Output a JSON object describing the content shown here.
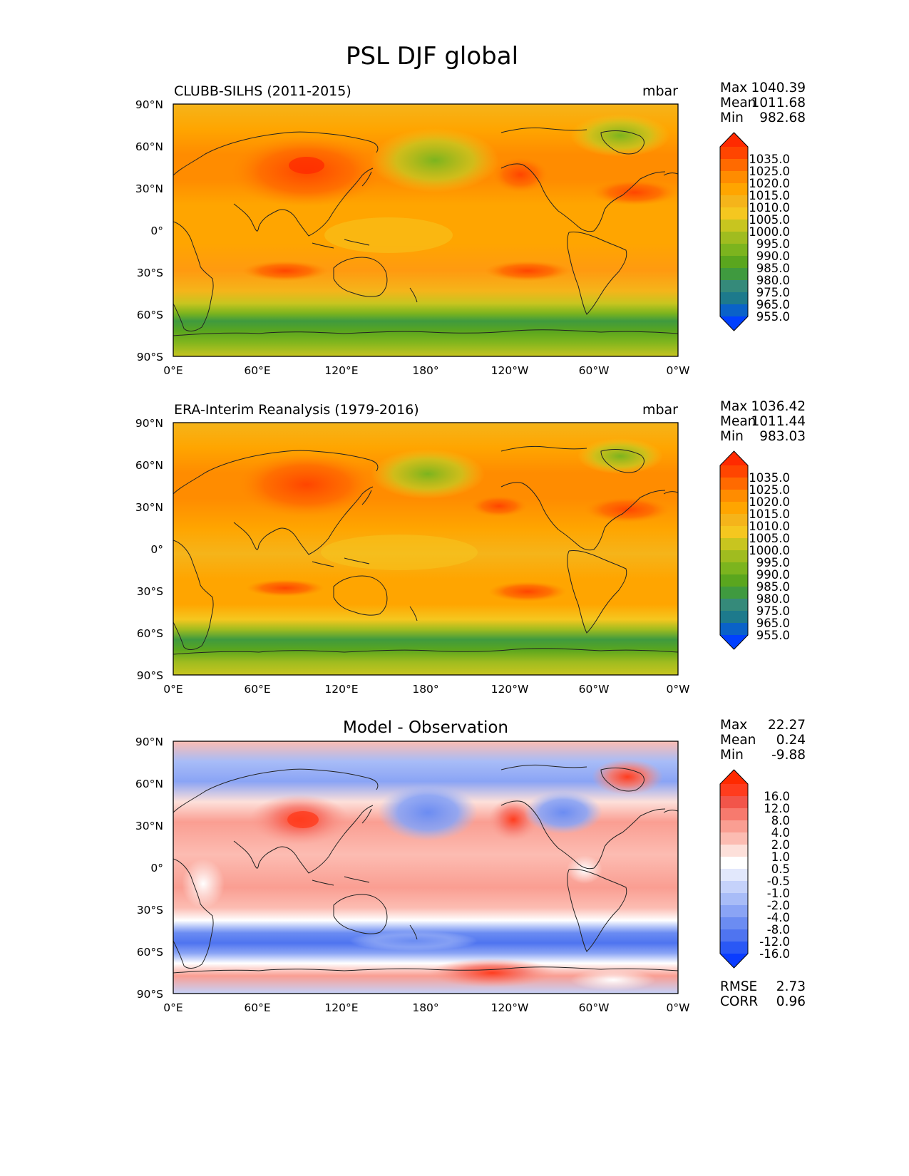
{
  "figure": {
    "title": "PSL DJF global",
    "axis_ticks": {
      "x": [
        "0°E",
        "60°E",
        "120°E",
        "180°",
        "120°W",
        "60°W",
        "0°W"
      ],
      "y": [
        "90°N",
        "60°N",
        "30°N",
        "0°",
        "30°S",
        "60°S",
        "90°S"
      ]
    },
    "stat_labels": {
      "max": "Max",
      "mean": "Mean",
      "min": "Min",
      "rmse": "RMSE",
      "corr": "CORR"
    }
  },
  "chart_data": [
    {
      "type": "heatmap",
      "subtype": "filled-contour-map",
      "title": "CLUBB-SILHS (2011-2015)",
      "units": "mbar",
      "xlim": [
        0,
        360
      ],
      "ylim": [
        -90,
        90
      ],
      "stats": {
        "max": "1040.39",
        "mean": "1011.68",
        "min": "982.68"
      },
      "colorbar": {
        "labels": [
          "1035.0",
          "1025.0",
          "1020.0",
          "1015.0",
          "1010.0",
          "1005.0",
          "1000.0",
          "995.0",
          "990.0",
          "985.0",
          "980.0",
          "975.0",
          "965.0",
          "955.0"
        ],
        "colors": [
          "#ff2a00",
          "#ff4500",
          "#ff6a00",
          "#ff8c00",
          "#ffa500",
          "#f5b41a",
          "#f5c71f",
          "#c8c51f",
          "#a0bc1f",
          "#7cb41e",
          "#5aa61e",
          "#3f9a3f",
          "#358a7a",
          "#1d7a8c",
          "#0a62c8",
          "#0040ff"
        ]
      },
      "data_description": "DJF sea level pressure climatology; high pressure over Siberia (~1035) and subtropical highs, low pressure belt near 60°S (~985) and Aleutian/Icelandic lows."
    },
    {
      "type": "heatmap",
      "subtype": "filled-contour-map",
      "title": "ERA-Interim Reanalysis (1979-2016)",
      "units": "mbar",
      "xlim": [
        0,
        360
      ],
      "ylim": [
        -90,
        90
      ],
      "stats": {
        "max": "1036.42",
        "mean": "1011.44",
        "min": "983.03"
      },
      "colorbar": {
        "labels": [
          "1035.0",
          "1025.0",
          "1020.0",
          "1015.0",
          "1010.0",
          "1005.0",
          "1000.0",
          "995.0",
          "990.0",
          "985.0",
          "980.0",
          "975.0",
          "965.0",
          "955.0"
        ],
        "colors": [
          "#ff2a00",
          "#ff4500",
          "#ff6a00",
          "#ff8c00",
          "#ffa500",
          "#f5b41a",
          "#f5c71f",
          "#c8c51f",
          "#a0bc1f",
          "#7cb41e",
          "#5aa61e",
          "#3f9a3f",
          "#358a7a",
          "#1d7a8c",
          "#0a62c8",
          "#0040ff"
        ]
      }
    },
    {
      "type": "heatmap",
      "subtype": "filled-contour-map",
      "title": "Model - Observation",
      "units": "",
      "xlim": [
        0,
        360
      ],
      "ylim": [
        -90,
        90
      ],
      "stats": {
        "max": "22.27",
        "mean": "0.24",
        "min": "-9.88",
        "rmse": "2.73",
        "corr": "0.96"
      },
      "colorbar": {
        "labels": [
          "16.0",
          "12.0",
          "8.0",
          "4.0",
          "2.0",
          "1.0",
          "0.5",
          "-0.5",
          "-1.0",
          "-2.0",
          "-4.0",
          "-8.0",
          "-12.0",
          "-16.0"
        ],
        "colors": [
          "#ff2a00",
          "#ff3c1e",
          "#f2554a",
          "#f77a6e",
          "#fa9e92",
          "#fcbcb2",
          "#fde0da",
          "#ffffff",
          "#e2e8fc",
          "#c5d2fa",
          "#a8bcf7",
          "#8aa4f5",
          "#6b8cf2",
          "#4f74f0",
          "#2a58f5",
          "#0a3cff"
        ]
      },
      "data_description": "Model minus observation difference; positive over central Asia (~12) and subtropics, negative over Southern Ocean (~-8) and North Pacific/Atlantic."
    }
  ]
}
